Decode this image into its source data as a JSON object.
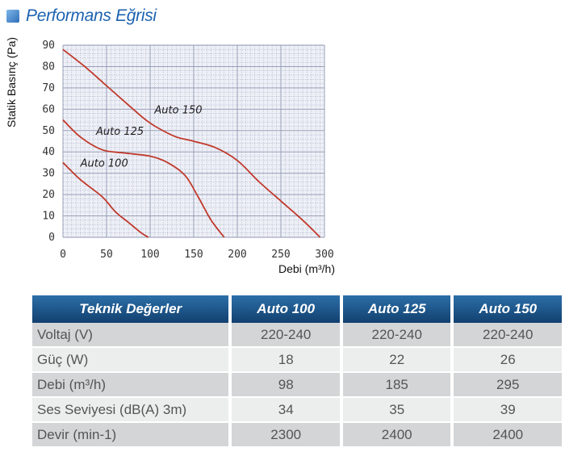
{
  "page_title": "Performans Eğrisi",
  "chart_data": {
    "type": "line",
    "title": "",
    "xlabel": "Debi (m³/h)",
    "ylabel": "Statik Basınç (Pa)",
    "xlim": [
      0,
      300
    ],
    "ylim": [
      0,
      90
    ],
    "xticks": [
      0,
      50,
      100,
      150,
      200,
      250,
      300
    ],
    "yticks": [
      0,
      10,
      20,
      30,
      40,
      50,
      60,
      70,
      80,
      90
    ],
    "grid": true,
    "series": [
      {
        "name": "Auto 100",
        "color": "#c0392b",
        "x": [
          0,
          20,
          45,
          60,
          75,
          90,
          98
        ],
        "y": [
          35,
          27,
          19,
          12,
          7,
          2,
          0
        ]
      },
      {
        "name": "Auto 125",
        "color": "#c0392b",
        "x": [
          0,
          20,
          45,
          70,
          100,
          120,
          140,
          155,
          170,
          185
        ],
        "y": [
          55,
          47,
          41,
          39.5,
          38,
          35,
          29,
          19,
          8,
          0
        ]
      },
      {
        "name": "Auto 150",
        "color": "#c0392b",
        "x": [
          0,
          25,
          50,
          75,
          95,
          110,
          130,
          150,
          175,
          200,
          225,
          250,
          275,
          295
        ],
        "y": [
          88,
          80,
          71,
          62,
          55,
          51,
          47,
          45,
          42,
          36,
          26,
          17,
          8,
          0
        ]
      }
    ],
    "curve_labels": [
      {
        "series": "Auto 150",
        "text": "Auto 150",
        "x": 105,
        "y": 58
      },
      {
        "series": "Auto 125",
        "text": "Auto 125",
        "x": 38,
        "y": 48
      },
      {
        "series": "Auto 100",
        "text": "Auto 100",
        "x": 20,
        "y": 33
      }
    ]
  },
  "table": {
    "headers": [
      "Teknik Değerler",
      "Auto 100",
      "Auto 125",
      "Auto 150"
    ],
    "rows": [
      [
        "Voltaj (V)",
        "220-240",
        "220-240",
        "220-240"
      ],
      [
        "Güç (W)",
        "18",
        "22",
        "26"
      ],
      [
        "Debi (m³/h)",
        "98",
        "185",
        "295"
      ],
      [
        "Ses Seviyesi (dB(A) 3m)",
        "34",
        "35",
        "39"
      ],
      [
        "Devir (min-1)",
        "2300",
        "2400",
        "2400"
      ]
    ]
  },
  "colors": {
    "title": "#1d63b0",
    "curve": "#c0392b",
    "grid_line": "#8e96b0",
    "plot_bg": "#eef0f7",
    "table_header": "#1b4f85"
  }
}
